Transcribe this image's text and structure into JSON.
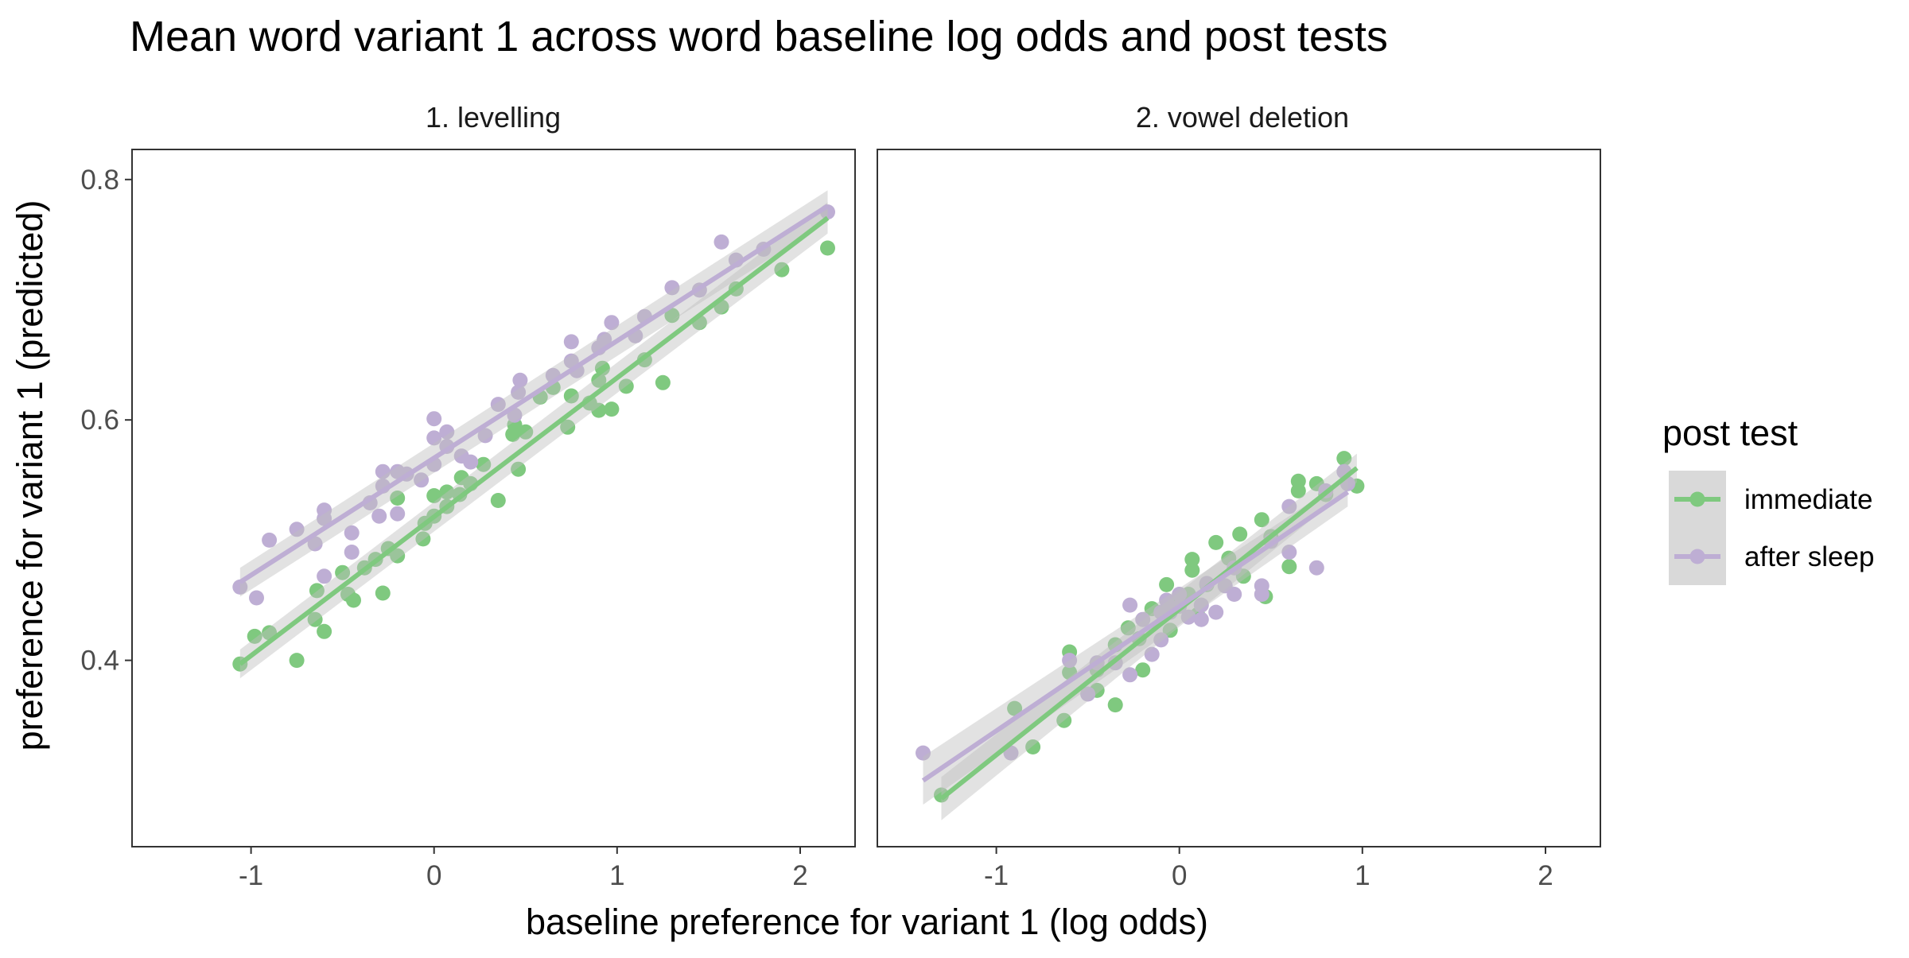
{
  "chart_data": {
    "type": "scatter",
    "title": "Mean word variant 1 across word baseline log odds and post tests",
    "xlabel": "baseline preference for variant 1 (log odds)",
    "ylabel": "preference for variant 1 (predicted)",
    "xlim": [
      -1.65,
      2.3
    ],
    "ylim": [
      0.245,
      0.825
    ],
    "x_ticks": [
      -1,
      0,
      1,
      2
    ],
    "y_ticks": [
      0.4,
      0.6,
      0.8
    ],
    "x_tick_labels": [
      "-1",
      "0",
      "1",
      "2"
    ],
    "y_tick_labels": [
      "0.4",
      "0.6",
      "0.8"
    ],
    "grid": false,
    "legend": {
      "title": "post test",
      "position": "right",
      "entries": [
        {
          "label": "immediate",
          "color": "#7fc97f"
        },
        {
          "label": "after sleep",
          "color": "#beaed4"
        }
      ]
    },
    "ribbon_color": "#bebebe",
    "panels": [
      {
        "label": "1. levelling",
        "series": [
          {
            "name": "immediate",
            "color": "#7fc97f",
            "fit": {
              "x": [
                -1.06,
                2.15
              ],
              "y": [
                0.397,
                0.768
              ],
              "se": [
                0.012,
                0.013
              ]
            },
            "points": [
              [
                -1.06,
                0.397
              ],
              [
                -0.98,
                0.42
              ],
              [
                -0.9,
                0.423
              ],
              [
                -0.75,
                0.4
              ],
              [
                -0.65,
                0.434
              ],
              [
                -0.6,
                0.424
              ],
              [
                -0.64,
                0.458
              ],
              [
                -0.5,
                0.473
              ],
              [
                -0.47,
                0.455
              ],
              [
                -0.44,
                0.45
              ],
              [
                -0.38,
                0.477
              ],
              [
                -0.32,
                0.484
              ],
              [
                -0.28,
                0.456
              ],
              [
                -0.25,
                0.493
              ],
              [
                -0.2,
                0.487
              ],
              [
                -0.2,
                0.535
              ],
              [
                -0.06,
                0.501
              ],
              [
                -0.05,
                0.514
              ],
              [
                0.0,
                0.537
              ],
              [
                0.0,
                0.52
              ],
              [
                0.07,
                0.528
              ],
              [
                0.07,
                0.54
              ],
              [
                0.14,
                0.538
              ],
              [
                0.15,
                0.552
              ],
              [
                0.2,
                0.547
              ],
              [
                0.27,
                0.563
              ],
              [
                0.35,
                0.533
              ],
              [
                0.43,
                0.588
              ],
              [
                0.44,
                0.596
              ],
              [
                0.46,
                0.559
              ],
              [
                0.5,
                0.59
              ],
              [
                0.58,
                0.619
              ],
              [
                0.65,
                0.627
              ],
              [
                0.73,
                0.594
              ],
              [
                0.75,
                0.62
              ],
              [
                0.85,
                0.614
              ],
              [
                0.9,
                0.608
              ],
              [
                0.9,
                0.633
              ],
              [
                0.92,
                0.643
              ],
              [
                0.97,
                0.609
              ],
              [
                1.05,
                0.628
              ],
              [
                1.15,
                0.65
              ],
              [
                1.25,
                0.631
              ],
              [
                1.3,
                0.687
              ],
              [
                1.45,
                0.681
              ],
              [
                1.57,
                0.694
              ],
              [
                1.65,
                0.709
              ],
              [
                1.9,
                0.725
              ],
              [
                2.15,
                0.743
              ]
            ]
          },
          {
            "name": "after sleep",
            "color": "#beaed4",
            "fit": {
              "x": [
                -1.06,
                2.15
              ],
              "y": [
                0.465,
                0.778
              ],
              "se": [
                0.012,
                0.013
              ]
            },
            "points": [
              [
                -1.06,
                0.461
              ],
              [
                -0.97,
                0.452
              ],
              [
                -0.9,
                0.5
              ],
              [
                -0.75,
                0.509
              ],
              [
                -0.65,
                0.497
              ],
              [
                -0.6,
                0.525
              ],
              [
                -0.6,
                0.518
              ],
              [
                -0.6,
                0.47
              ],
              [
                -0.45,
                0.49
              ],
              [
                -0.45,
                0.506
              ],
              [
                -0.35,
                0.531
              ],
              [
                -0.3,
                0.52
              ],
              [
                -0.28,
                0.545
              ],
              [
                -0.28,
                0.557
              ],
              [
                -0.2,
                0.557
              ],
              [
                -0.2,
                0.522
              ],
              [
                -0.15,
                0.555
              ],
              [
                -0.07,
                0.55
              ],
              [
                0.0,
                0.601
              ],
              [
                0.0,
                0.585
              ],
              [
                0.0,
                0.563
              ],
              [
                0.07,
                0.59
              ],
              [
                0.07,
                0.578
              ],
              [
                0.15,
                0.57
              ],
              [
                0.2,
                0.565
              ],
              [
                0.28,
                0.587
              ],
              [
                0.35,
                0.613
              ],
              [
                0.44,
                0.604
              ],
              [
                0.46,
                0.623
              ],
              [
                0.47,
                0.633
              ],
              [
                0.65,
                0.637
              ],
              [
                0.75,
                0.665
              ],
              [
                0.75,
                0.649
              ],
              [
                0.78,
                0.641
              ],
              [
                0.9,
                0.66
              ],
              [
                0.93,
                0.667
              ],
              [
                0.97,
                0.681
              ],
              [
                1.1,
                0.67
              ],
              [
                1.15,
                0.686
              ],
              [
                1.3,
                0.71
              ],
              [
                1.45,
                0.708
              ],
              [
                1.57,
                0.748
              ],
              [
                1.65,
                0.733
              ],
              [
                1.8,
                0.742
              ],
              [
                2.15,
                0.773
              ]
            ]
          }
        ]
      },
      {
        "label": "2. vowel deletion",
        "series": [
          {
            "name": "immediate",
            "color": "#7fc97f",
            "fit": {
              "x": [
                -1.3,
                0.97
              ],
              "y": [
                0.285,
                0.56
              ],
              "se": [
                0.018,
                0.012
              ]
            },
            "points": [
              [
                -1.3,
                0.288
              ],
              [
                -0.9,
                0.36
              ],
              [
                -0.8,
                0.328
              ],
              [
                -0.63,
                0.35
              ],
              [
                -0.6,
                0.407
              ],
              [
                -0.6,
                0.39
              ],
              [
                -0.45,
                0.375
              ],
              [
                -0.45,
                0.392
              ],
              [
                -0.35,
                0.363
              ],
              [
                -0.35,
                0.413
              ],
              [
                -0.28,
                0.427
              ],
              [
                -0.22,
                0.418
              ],
              [
                -0.2,
                0.392
              ],
              [
                -0.15,
                0.443
              ],
              [
                -0.07,
                0.463
              ],
              [
                -0.05,
                0.425
              ],
              [
                0.0,
                0.449
              ],
              [
                0.05,
                0.455
              ],
              [
                0.07,
                0.475
              ],
              [
                0.07,
                0.484
              ],
              [
                0.1,
                0.438
              ],
              [
                0.15,
                0.463
              ],
              [
                0.2,
                0.498
              ],
              [
                0.27,
                0.485
              ],
              [
                0.33,
                0.505
              ],
              [
                0.35,
                0.47
              ],
              [
                0.45,
                0.517
              ],
              [
                0.47,
                0.453
              ],
              [
                0.5,
                0.503
              ],
              [
                0.6,
                0.478
              ],
              [
                0.65,
                0.549
              ],
              [
                0.65,
                0.541
              ],
              [
                0.75,
                0.547
              ],
              [
                0.8,
                0.538
              ],
              [
                0.9,
                0.568
              ],
              [
                0.97,
                0.545
              ]
            ]
          },
          {
            "name": "after sleep",
            "color": "#beaed4",
            "fit": {
              "x": [
                -1.4,
                0.92
              ],
              "y": [
                0.3,
                0.54
              ],
              "se": [
                0.02,
                0.012
              ]
            },
            "points": [
              [
                -1.4,
                0.323
              ],
              [
                -0.92,
                0.323
              ],
              [
                -0.6,
                0.4
              ],
              [
                -0.5,
                0.372
              ],
              [
                -0.45,
                0.398
              ],
              [
                -0.35,
                0.398
              ],
              [
                -0.27,
                0.446
              ],
              [
                -0.27,
                0.388
              ],
              [
                -0.2,
                0.434
              ],
              [
                -0.15,
                0.405
              ],
              [
                -0.1,
                0.44
              ],
              [
                -0.1,
                0.417
              ],
              [
                -0.05,
                0.44
              ],
              [
                -0.07,
                0.45
              ],
              [
                0.0,
                0.455
              ],
              [
                0.0,
                0.445
              ],
              [
                0.05,
                0.436
              ],
              [
                0.12,
                0.446
              ],
              [
                0.12,
                0.434
              ],
              [
                0.15,
                0.464
              ],
              [
                0.2,
                0.44
              ],
              [
                0.25,
                0.462
              ],
              [
                0.3,
                0.455
              ],
              [
                0.3,
                0.477
              ],
              [
                0.45,
                0.462
              ],
              [
                0.45,
                0.455
              ],
              [
                0.5,
                0.499
              ],
              [
                0.6,
                0.49
              ],
              [
                0.6,
                0.528
              ],
              [
                0.75,
                0.477
              ],
              [
                0.8,
                0.541
              ],
              [
                0.9,
                0.557
              ],
              [
                0.92,
                0.547
              ]
            ]
          }
        ]
      }
    ]
  }
}
